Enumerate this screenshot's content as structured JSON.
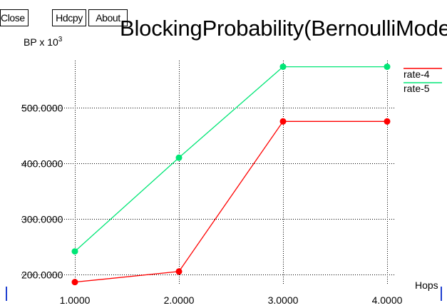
{
  "toolbar": {
    "close_label": "Close",
    "hdcpy_label": "Hdcpy",
    "about_label": "About"
  },
  "chart_data": {
    "type": "line",
    "title": "BlockingProbability(BernoulliModel)",
    "ylabel_base": "BP x 10",
    "ylabel_exp": "3",
    "xlabel": "Hops",
    "x": [
      1,
      2,
      3,
      4
    ],
    "xticks": [
      "1.0000",
      "2.0000",
      "3.0000",
      "4.0000"
    ],
    "yticks": [
      {
        "value": 200,
        "label": "200.0000"
      },
      {
        "value": 300,
        "label": "300.0000"
      },
      {
        "value": 400,
        "label": "400.0000"
      },
      {
        "value": 500,
        "label": "500.0000"
      }
    ],
    "xlim": [
      1,
      4
    ],
    "ylim": [
      184,
      584
    ],
    "grid": true,
    "legend_position": "right",
    "series": [
      {
        "name": "rate-4",
        "color": "#ff0000",
        "values": [
          187,
          206,
          475,
          475
        ]
      },
      {
        "name": "rate-5",
        "color": "#00e676",
        "values": [
          242,
          410,
          573,
          573
        ]
      }
    ]
  }
}
